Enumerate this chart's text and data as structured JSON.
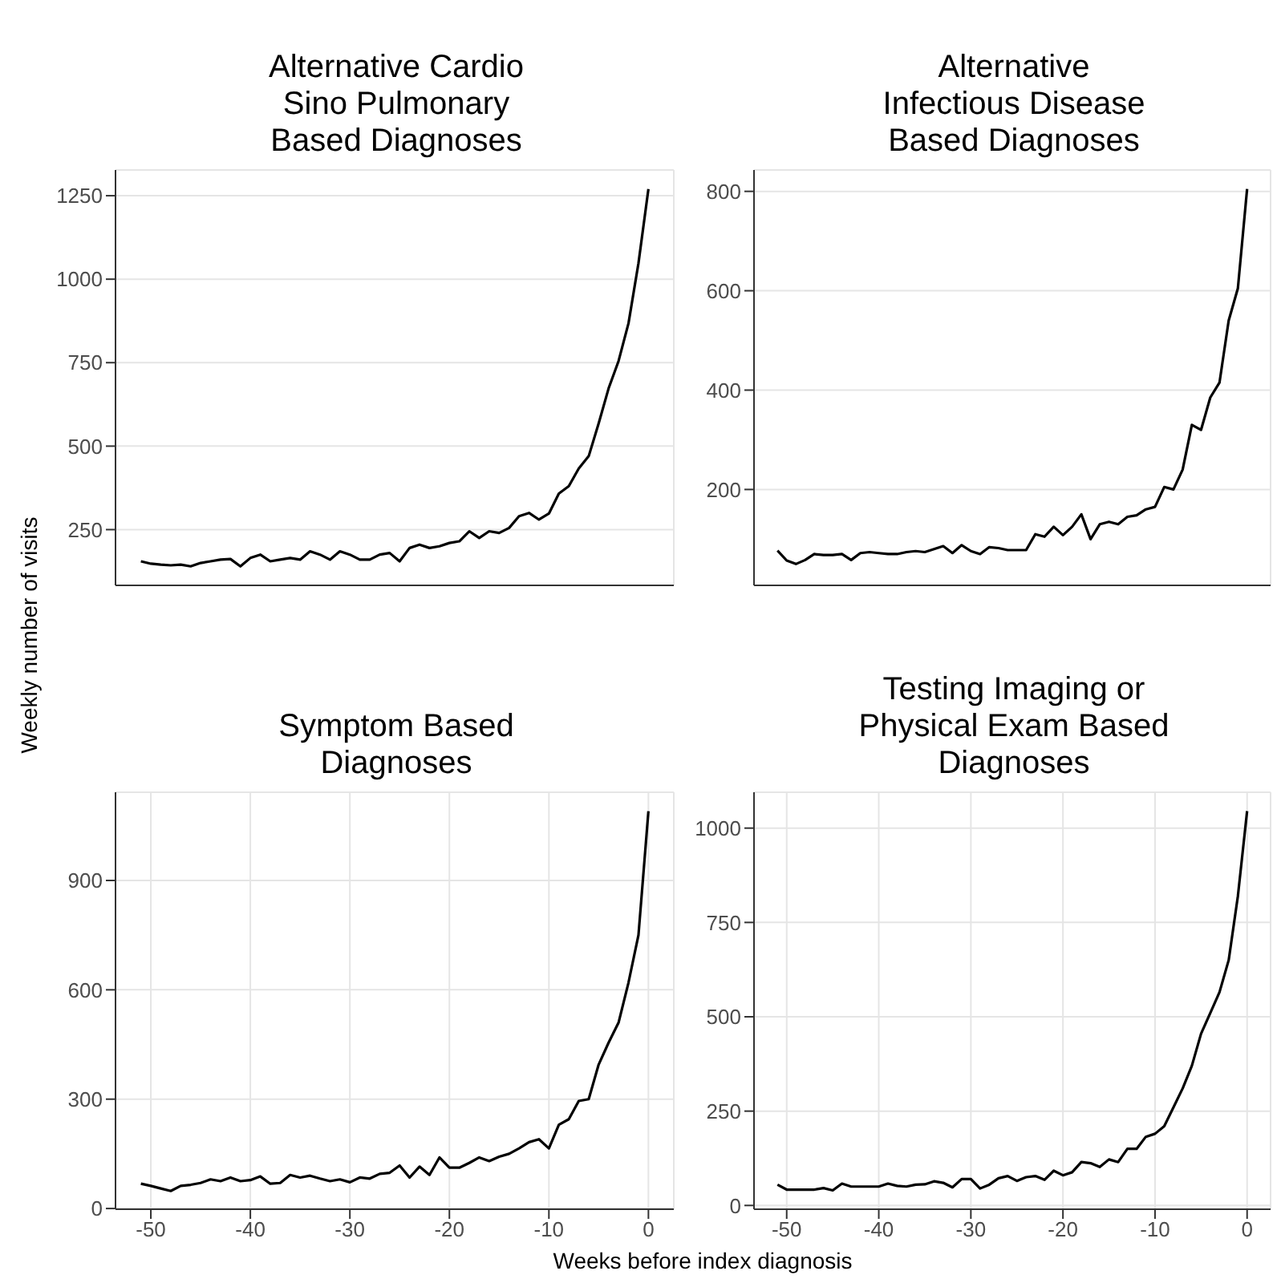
{
  "chart_data": [
    {
      "type": "line",
      "title": "Alternative Cardio\nSino Pulmonary\nBased Diagnoses",
      "ylabel": "Weekly number of visits",
      "x": [
        -51,
        -50,
        -49,
        -48,
        -47,
        -46,
        -45,
        -44,
        -43,
        -42,
        -41,
        -40,
        -39,
        -38,
        -37,
        -36,
        -35,
        -34,
        -33,
        -32,
        -31,
        -30,
        -29,
        -28,
        -27,
        -26,
        -25,
        -24,
        -23,
        -22,
        -21,
        -20,
        -19,
        -18,
        -17,
        -16,
        -15,
        -14,
        -13,
        -12,
        -11,
        -10,
        -9,
        -8,
        -7,
        -6,
        -5,
        -4,
        -3,
        -2,
        -1,
        0
      ],
      "series": [
        {
          "color": "#000000",
          "values": [
            155,
            148,
            145,
            143,
            145,
            140,
            150,
            155,
            160,
            162,
            140,
            165,
            175,
            155,
            160,
            165,
            160,
            185,
            175,
            160,
            185,
            175,
            160,
            160,
            175,
            180,
            155,
            195,
            205,
            195,
            200,
            210,
            215,
            245,
            225,
            245,
            240,
            255,
            290,
            300,
            280,
            298,
            358,
            380,
            433,
            470,
            568,
            673,
            755,
            868,
            1048,
            1270
          ]
        }
      ],
      "xlim": [
        -53.55,
        2.55
      ],
      "xticks": [
        -50,
        -40,
        -30,
        -20,
        -10,
        0
      ],
      "ylim": [
        83,
        1327
      ],
      "yticks": [
        250,
        500,
        750,
        1000,
        1250
      ],
      "grid": true,
      "tick_labels": "y"
    },
    {
      "type": "line",
      "title": "Alternative\nInfectious Disease\nBased Diagnoses",
      "x": [
        -51,
        -50,
        -49,
        -48,
        -47,
        -46,
        -45,
        -44,
        -43,
        -42,
        -41,
        -40,
        -39,
        -38,
        -37,
        -36,
        -35,
        -34,
        -33,
        -32,
        -31,
        -30,
        -29,
        -28,
        -27,
        -26,
        -25,
        -24,
        -23,
        -22,
        -21,
        -20,
        -19,
        -18,
        -17,
        -16,
        -15,
        -14,
        -13,
        -12,
        -11,
        -10,
        -9,
        -8,
        -7,
        -6,
        -5,
        -4,
        -3,
        -2,
        -1,
        0
      ],
      "series": [
        {
          "color": "#000000",
          "values": [
            77,
            57,
            50,
            58,
            70,
            68,
            68,
            70,
            58,
            72,
            74,
            72,
            70,
            70,
            74,
            76,
            74,
            80,
            86,
            72,
            88,
            76,
            70,
            84,
            82,
            78,
            78,
            78,
            110,
            105,
            125,
            108,
            125,
            150,
            100,
            130,
            135,
            130,
            145,
            148,
            160,
            165,
            205,
            200,
            240,
            330,
            320,
            385,
            415,
            540,
            605,
            805
          ]
        }
      ],
      "xlim": [
        -53.55,
        2.55
      ],
      "xticks": [
        -50,
        -40,
        -30,
        -20,
        -10,
        0
      ],
      "ylim": [
        7,
        843
      ],
      "yticks": [
        200,
        400,
        600,
        800
      ],
      "grid": true,
      "tick_labels": "y"
    },
    {
      "type": "line",
      "title": "Symptom Based\nDiagnoses",
      "xlabel": "Weeks before index diagnosis",
      "x": [
        -51,
        -50,
        -49,
        -48,
        -47,
        -46,
        -45,
        -44,
        -43,
        -42,
        -41,
        -40,
        -39,
        -38,
        -37,
        -36,
        -35,
        -34,
        -33,
        -32,
        -31,
        -30,
        -29,
        -28,
        -27,
        -26,
        -25,
        -24,
        -23,
        -22,
        -21,
        -20,
        -19,
        -18,
        -17,
        -16,
        -15,
        -14,
        -13,
        -12,
        -11,
        -10,
        -9,
        -8,
        -7,
        -6,
        -5,
        -4,
        -3,
        -2,
        -1,
        0
      ],
      "series": [
        {
          "color": "#000000",
          "values": [
            68,
            62,
            55,
            48,
            62,
            65,
            70,
            80,
            75,
            85,
            75,
            78,
            88,
            68,
            70,
            92,
            85,
            90,
            82,
            75,
            80,
            72,
            85,
            82,
            95,
            98,
            118,
            85,
            115,
            92,
            140,
            112,
            112,
            125,
            140,
            130,
            142,
            150,
            165,
            182,
            190,
            165,
            230,
            245,
            295,
            300,
            395,
            455,
            510,
            620,
            750,
            1090
          ]
        }
      ],
      "xlim": [
        -53.55,
        2.55
      ],
      "xticks": [
        -50,
        -40,
        -30,
        -20,
        -10,
        0
      ],
      "ylim": [
        -2,
        1142
      ],
      "yticks": [
        0,
        300,
        600,
        900
      ],
      "grid": true
    },
    {
      "type": "line",
      "title": "Testing Imaging or\nPhysical Exam Based\nDiagnoses",
      "x": [
        -51,
        -50,
        -49,
        -48,
        -47,
        -46,
        -45,
        -44,
        -43,
        -42,
        -41,
        -40,
        -39,
        -38,
        -37,
        -36,
        -35,
        -34,
        -33,
        -32,
        -31,
        -30,
        -29,
        -28,
        -27,
        -26,
        -25,
        -24,
        -23,
        -22,
        -21,
        -20,
        -19,
        -18,
        -17,
        -16,
        -15,
        -14,
        -13,
        -12,
        -11,
        -10,
        -9,
        -8,
        -7,
        -6,
        -5,
        -4,
        -3,
        -2,
        -1,
        0
      ],
      "series": [
        {
          "color": "#000000",
          "values": [
            55,
            42,
            42,
            42,
            42,
            46,
            40,
            58,
            50,
            50,
            50,
            50,
            58,
            52,
            50,
            55,
            56,
            64,
            60,
            48,
            70,
            70,
            45,
            55,
            72,
            78,
            65,
            75,
            78,
            68,
            92,
            80,
            88,
            115,
            112,
            102,
            122,
            115,
            150,
            150,
            182,
            190,
            210,
            260,
            310,
            370,
            455,
            510,
            565,
            650,
            820,
            1045
          ]
        }
      ],
      "xlim": [
        -53.55,
        2.55
      ],
      "xticks": [
        -50,
        -40,
        -30,
        -20,
        -10,
        0
      ],
      "ylim": [
        -10,
        1095
      ],
      "yticks": [
        0,
        250,
        500,
        750,
        1000
      ],
      "grid": true
    }
  ]
}
